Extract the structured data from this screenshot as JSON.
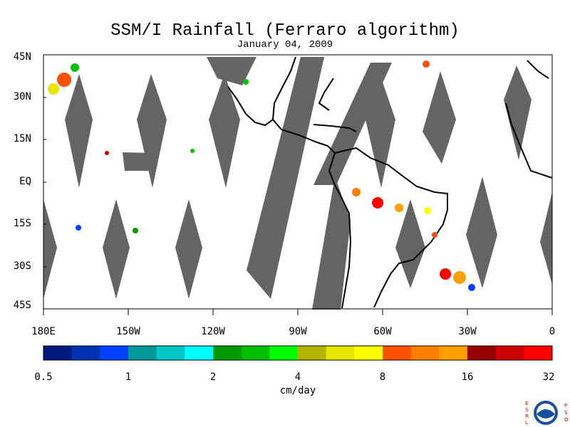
{
  "title": "SSM/I Rainfall (Ferraro algorithm)",
  "subtitle": "January 04, 2009",
  "lat_labels": [
    "45N",
    "30N",
    "15N",
    "EQ",
    "15S",
    "30S",
    "45S"
  ],
  "lon_labels": [
    "180E",
    "150W",
    "120W",
    "90W",
    "60W",
    "30W",
    "0"
  ],
  "colorbar": {
    "tick_labels": [
      "0.5",
      "1",
      "2",
      "4",
      "8",
      "16",
      "32"
    ],
    "units": "cm/day",
    "colors": [
      "#001a80",
      "#0033b3",
      "#0040ff",
      "#009999",
      "#00c8c8",
      "#00ffff",
      "#009900",
      "#00c000",
      "#00ff00",
      "#b3b300",
      "#e6e600",
      "#ffff00",
      "#ff5000",
      "#ff8000",
      "#ffa000",
      "#990000",
      "#cc0000",
      "#ff0000"
    ]
  },
  "colors": {
    "no_data_swath": "#646464",
    "land_outline": "#000000"
  },
  "logo": {
    "left_letters": "ESRL",
    "right_letters": "PSD",
    "agency": "NOAA"
  }
}
